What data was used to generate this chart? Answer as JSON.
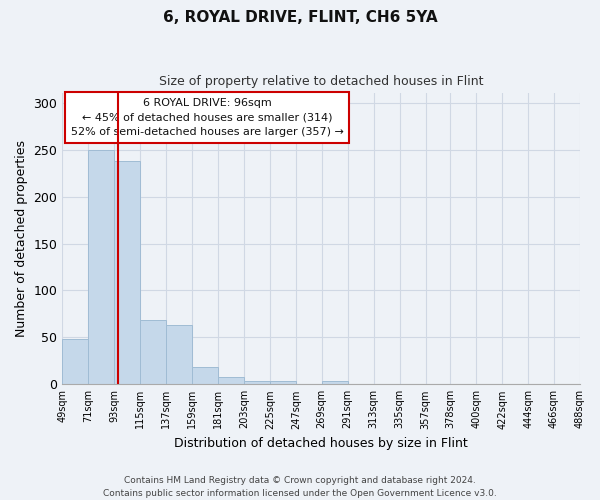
{
  "title": "6, ROYAL DRIVE, FLINT, CH6 5YA",
  "subtitle": "Size of property relative to detached houses in Flint",
  "xlabel": "Distribution of detached houses by size in Flint",
  "ylabel": "Number of detached properties",
  "footer_line1": "Contains HM Land Registry data © Crown copyright and database right 2024.",
  "footer_line2": "Contains public sector information licensed under the Open Government Licence v3.0.",
  "bin_labels": [
    "49sqm",
    "71sqm",
    "93sqm",
    "115sqm",
    "137sqm",
    "159sqm",
    "181sqm",
    "203sqm",
    "225sqm",
    "247sqm",
    "269sqm",
    "291sqm",
    "313sqm",
    "335sqm",
    "357sqm",
    "378sqm",
    "400sqm",
    "422sqm",
    "444sqm",
    "466sqm",
    "488sqm"
  ],
  "bar_values": [
    48,
    250,
    238,
    68,
    63,
    18,
    8,
    4,
    3,
    0,
    3,
    0,
    0,
    0,
    0,
    0,
    0,
    0,
    0,
    0,
    0
  ],
  "bar_color": "#c5d8ea",
  "bar_edgecolor": "#a0bcd4",
  "red_line_x": 96,
  "ylim": [
    0,
    310
  ],
  "yticks": [
    0,
    50,
    100,
    150,
    200,
    250,
    300
  ],
  "annotation_title": "6 ROYAL DRIVE: 96sqm",
  "annotation_line1": "← 45% of detached houses are smaller (314)",
  "annotation_line2": "52% of semi-detached houses are larger (357) →",
  "annotation_box_color": "#ffffff",
  "annotation_border_color": "#cc0000",
  "red_line_color": "#cc0000",
  "grid_color": "#d0d8e4",
  "bg_color": "#eef2f7"
}
